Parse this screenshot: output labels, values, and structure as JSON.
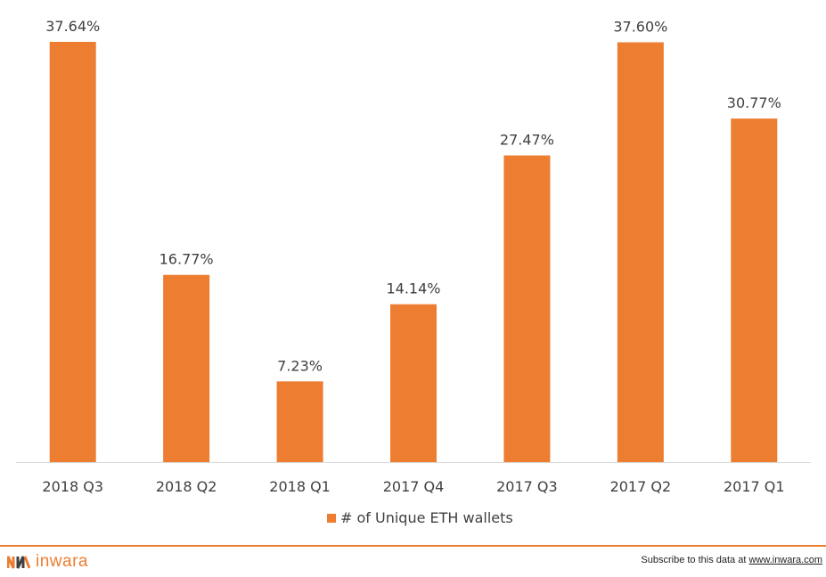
{
  "chart_data": {
    "type": "bar",
    "categories": [
      "2018 Q3",
      "2018 Q2",
      "2018 Q1",
      "2017 Q4",
      "2017 Q3",
      "2017 Q2",
      "2017 Q1"
    ],
    "series": [
      {
        "name": "# of Unique ETH wallets",
        "values": [
          37.64,
          16.77,
          7.23,
          14.14,
          27.47,
          37.6,
          30.77
        ],
        "labels": [
          "37.64%",
          "16.77%",
          "7.23%",
          "14.14%",
          "27.47%",
          "37.60%",
          "30.77%"
        ]
      }
    ],
    "ylim": [
      0,
      37.64
    ],
    "grid": false,
    "legend_position": "bottom",
    "colors": {
      "bar": "#ed7d31",
      "text": "#404040",
      "baseline": "#d9d9d9"
    }
  },
  "footer": {
    "logo_text": "inwara",
    "subscribe_text": "Subscribe to this data at ",
    "subscribe_link": "www.inwara.com"
  }
}
